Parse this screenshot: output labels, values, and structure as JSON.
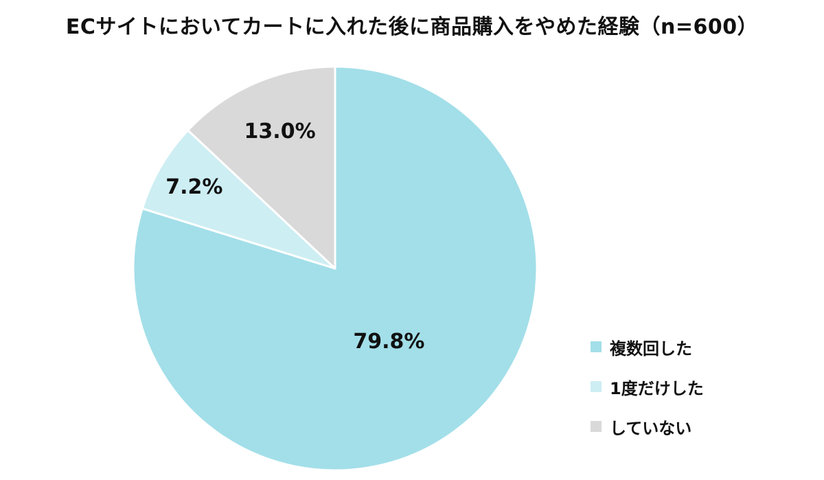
{
  "chart_data": {
    "type": "pie",
    "title": "ECサイトにおいてカートに入れた後に商品購入をやめた経験（n=600）",
    "slices": [
      {
        "name": "複数回した",
        "value": 79.8,
        "label": "79.8%",
        "color": "#a3dfe9"
      },
      {
        "name": "1度だけした",
        "value": 7.2,
        "label": "7.2%",
        "color": "#cdeef3"
      },
      {
        "name": "していない",
        "value": 13.0,
        "label": "13.0%",
        "color": "#d9d9d9"
      }
    ],
    "start_angle": "12 o'clock",
    "direction": "clockwise",
    "legend_position": "bottom-right"
  }
}
